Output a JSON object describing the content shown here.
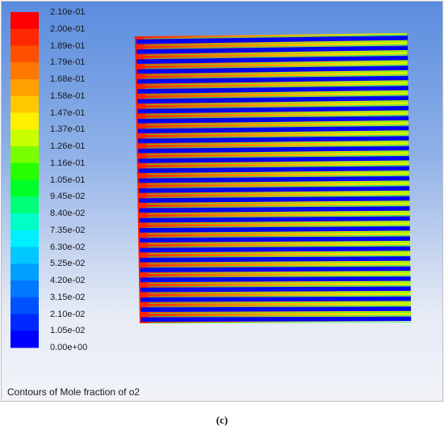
{
  "legend": {
    "ticks": [
      "2.10e-01",
      "2.00e-01",
      "1.89e-01",
      "1.79e-01",
      "1.68e-01",
      "1.58e-01",
      "1.47e-01",
      "1.37e-01",
      "1.26e-01",
      "1.16e-01",
      "1.05e-01",
      "9.45e-02",
      "8.40e-02",
      "7.35e-02",
      "6.30e-02",
      "5.25e-02",
      "4.20e-02",
      "3.15e-02",
      "2.10e-02",
      "1.05e-02",
      "0.00e+00"
    ],
    "colors": [
      "#ff0000",
      "#ff2800",
      "#ff5000",
      "#ff7800",
      "#ffa000",
      "#ffc800",
      "#fff000",
      "#c8ff00",
      "#78ff00",
      "#28ff00",
      "#00ff28",
      "#00ff78",
      "#00ffc8",
      "#00f0ff",
      "#00c8ff",
      "#00a0ff",
      "#0078ff",
      "#0050ff",
      "#0028ff",
      "#0000ff"
    ]
  },
  "caption": "Contours of Mole fraction of o2",
  "figure_label": "(c)"
}
